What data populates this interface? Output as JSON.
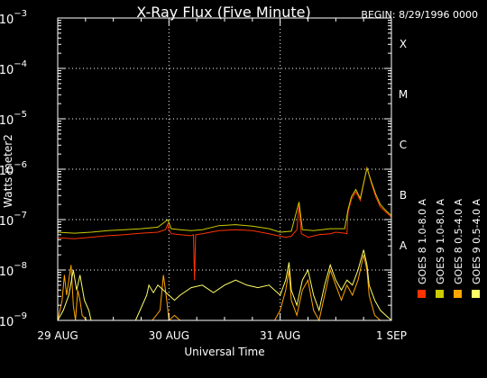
{
  "chart_data": {
    "type": "line",
    "title": "X-Ray Flux (Five Minute)",
    "begin_label": "BEGIN: 8/29/1996 0000",
    "xlabel": "Universal Time",
    "ylabel": "Watts meter2",
    "y_scale": "log",
    "ylim_exponent": [
      -9,
      -3
    ],
    "y_ticks": [
      {
        "base": "10",
        "exp": "−9",
        "value_exp": -9
      },
      {
        "base": "10",
        "exp": "−8",
        "value_exp": -8
      },
      {
        "base": "10",
        "exp": "−7",
        "value_exp": -7
      },
      {
        "base": "10",
        "exp": "−6",
        "value_exp": -6
      },
      {
        "base": "10",
        "exp": "−5",
        "value_exp": -5
      },
      {
        "base": "10",
        "exp": "−4",
        "value_exp": -4
      },
      {
        "base": "10",
        "exp": "−3",
        "value_exp": -3
      }
    ],
    "x_day_range": [
      0,
      3
    ],
    "x_ticks": [
      {
        "label": "29 AUG",
        "day": 0
      },
      {
        "label": "30 AUG",
        "day": 1
      },
      {
        "label": "31 AUG",
        "day": 2
      },
      {
        "label": "1 SEP",
        "day": 3
      }
    ],
    "flare_classes": [
      {
        "label": "A",
        "exp": -8
      },
      {
        "label": "B",
        "exp": -7
      },
      {
        "label": "C",
        "exp": -6
      },
      {
        "label": "M",
        "exp": -5
      },
      {
        "label": "X",
        "exp": -4
      }
    ],
    "grid": true,
    "legend_position": "right",
    "series": [
      {
        "name": "GOES 8 1.0-8.0 A",
        "color": "#ff3300",
        "points": [
          [
            0,
            -7.36
          ],
          [
            0.15,
            -7.38
          ],
          [
            0.3,
            -7.35
          ],
          [
            0.45,
            -7.32
          ],
          [
            0.6,
            -7.3
          ],
          [
            0.75,
            -7.27
          ],
          [
            0.9,
            -7.25
          ],
          [
            0.97,
            -7.2
          ],
          [
            0.99,
            -7.08
          ],
          [
            1.0,
            -7.2
          ],
          [
            1.02,
            -7.28
          ],
          [
            1.1,
            -7.3
          ],
          [
            1.2,
            -7.32
          ],
          [
            1.22,
            -7.3
          ],
          [
            1.23,
            -8.2
          ],
          [
            1.24,
            -7.3
          ],
          [
            1.3,
            -7.28
          ],
          [
            1.45,
            -7.22
          ],
          [
            1.6,
            -7.2
          ],
          [
            1.75,
            -7.22
          ],
          [
            1.9,
            -7.28
          ],
          [
            2.0,
            -7.33
          ],
          [
            2.05,
            -7.35
          ],
          [
            2.1,
            -7.33
          ],
          [
            2.15,
            -7.2
          ],
          [
            2.17,
            -6.72
          ],
          [
            2.19,
            -7.28
          ],
          [
            2.25,
            -7.35
          ],
          [
            2.35,
            -7.3
          ],
          [
            2.45,
            -7.28
          ],
          [
            2.5,
            -7.25
          ],
          [
            2.58,
            -7.27
          ],
          [
            2.6,
            -7.28
          ],
          [
            2.61,
            -6.85
          ],
          [
            2.64,
            -6.6
          ],
          [
            2.68,
            -6.45
          ],
          [
            2.72,
            -6.62
          ],
          [
            2.74,
            -6.4
          ],
          [
            2.78,
            -5.96
          ],
          [
            2.82,
            -6.28
          ],
          [
            2.86,
            -6.55
          ],
          [
            2.9,
            -6.75
          ],
          [
            2.95,
            -6.85
          ],
          [
            3.0,
            -6.95
          ]
        ]
      },
      {
        "name": "GOES 8 0.5-4.0 A",
        "color": "#ffa500",
        "points": [
          [
            0,
            -9
          ],
          [
            0.04,
            -8.6
          ],
          [
            0.06,
            -8.1
          ],
          [
            0.08,
            -8.5
          ],
          [
            0.1,
            -8.2
          ],
          [
            0.12,
            -7.9
          ],
          [
            0.14,
            -8.7
          ],
          [
            0.16,
            -9
          ],
          [
            0.18,
            -8.4
          ],
          [
            0.2,
            -8.6
          ],
          [
            0.22,
            -8.9
          ],
          [
            0.26,
            -9
          ],
          [
            0.5,
            -9
          ],
          [
            0.85,
            -9
          ],
          [
            0.92,
            -8.8
          ],
          [
            0.95,
            -8.1
          ],
          [
            0.98,
            -8.6
          ],
          [
            1.0,
            -9
          ],
          [
            1.05,
            -8.9
          ],
          [
            1.1,
            -9
          ],
          [
            1.3,
            -9
          ],
          [
            1.6,
            -9
          ],
          [
            1.95,
            -9
          ],
          [
            2.0,
            -8.8
          ],
          [
            2.05,
            -8.4
          ],
          [
            2.08,
            -8.0
          ],
          [
            2.1,
            -8.6
          ],
          [
            2.15,
            -8.9
          ],
          [
            2.2,
            -8.4
          ],
          [
            2.25,
            -8.2
          ],
          [
            2.3,
            -8.8
          ],
          [
            2.35,
            -9
          ],
          [
            2.4,
            -8.5
          ],
          [
            2.45,
            -8.0
          ],
          [
            2.5,
            -8.3
          ],
          [
            2.55,
            -8.6
          ],
          [
            2.6,
            -8.3
          ],
          [
            2.65,
            -8.5
          ],
          [
            2.7,
            -8.2
          ],
          [
            2.75,
            -7.7
          ],
          [
            2.78,
            -8.0
          ],
          [
            2.8,
            -8.5
          ],
          [
            2.85,
            -8.9
          ],
          [
            2.9,
            -9
          ],
          [
            3.0,
            -9
          ]
        ]
      },
      {
        "name": "GOES 9 1.0-8.0 A",
        "color": "#cccc00",
        "points": [
          [
            0,
            -7.25
          ],
          [
            0.15,
            -7.27
          ],
          [
            0.3,
            -7.25
          ],
          [
            0.45,
            -7.22
          ],
          [
            0.6,
            -7.2
          ],
          [
            0.75,
            -7.18
          ],
          [
            0.9,
            -7.15
          ],
          [
            0.99,
            -7.0
          ],
          [
            1.02,
            -7.18
          ],
          [
            1.1,
            -7.2
          ],
          [
            1.2,
            -7.22
          ],
          [
            1.3,
            -7.2
          ],
          [
            1.45,
            -7.12
          ],
          [
            1.6,
            -7.1
          ],
          [
            1.75,
            -7.13
          ],
          [
            1.9,
            -7.18
          ],
          [
            2.0,
            -7.25
          ],
          [
            2.1,
            -7.23
          ],
          [
            2.17,
            -6.65
          ],
          [
            2.2,
            -7.2
          ],
          [
            2.3,
            -7.22
          ],
          [
            2.45,
            -7.18
          ],
          [
            2.58,
            -7.18
          ],
          [
            2.61,
            -6.8
          ],
          [
            2.64,
            -6.55
          ],
          [
            2.68,
            -6.4
          ],
          [
            2.72,
            -6.58
          ],
          [
            2.74,
            -6.38
          ],
          [
            2.78,
            -5.98
          ],
          [
            2.82,
            -6.25
          ],
          [
            2.86,
            -6.5
          ],
          [
            2.9,
            -6.7
          ],
          [
            2.95,
            -6.82
          ],
          [
            3.0,
            -6.92
          ]
        ]
      },
      {
        "name": "GOES 9 0.5-4.0 A",
        "color": "#ffff66",
        "points": [
          [
            0,
            -9
          ],
          [
            0.05,
            -8.8
          ],
          [
            0.1,
            -8.5
          ],
          [
            0.14,
            -8.0
          ],
          [
            0.17,
            -8.4
          ],
          [
            0.2,
            -8.1
          ],
          [
            0.24,
            -8.6
          ],
          [
            0.28,
            -8.8
          ],
          [
            0.3,
            -9
          ],
          [
            0.5,
            -9
          ],
          [
            0.7,
            -9
          ],
          [
            0.8,
            -8.5
          ],
          [
            0.82,
            -8.3
          ],
          [
            0.86,
            -8.45
          ],
          [
            0.9,
            -8.3
          ],
          [
            0.95,
            -8.4
          ],
          [
            1.0,
            -8.5
          ],
          [
            1.05,
            -8.6
          ],
          [
            1.1,
            -8.5
          ],
          [
            1.2,
            -8.35
          ],
          [
            1.3,
            -8.3
          ],
          [
            1.4,
            -8.45
          ],
          [
            1.5,
            -8.3
          ],
          [
            1.6,
            -8.2
          ],
          [
            1.7,
            -8.3
          ],
          [
            1.8,
            -8.35
          ],
          [
            1.9,
            -8.3
          ],
          [
            2.0,
            -8.5
          ],
          [
            2.05,
            -8.2
          ],
          [
            2.08,
            -7.85
          ],
          [
            2.1,
            -8.4
          ],
          [
            2.15,
            -8.7
          ],
          [
            2.2,
            -8.2
          ],
          [
            2.25,
            -8.0
          ],
          [
            2.3,
            -8.5
          ],
          [
            2.35,
            -8.8
          ],
          [
            2.4,
            -8.3
          ],
          [
            2.45,
            -7.9
          ],
          [
            2.5,
            -8.2
          ],
          [
            2.55,
            -8.4
          ],
          [
            2.6,
            -8.2
          ],
          [
            2.65,
            -8.3
          ],
          [
            2.7,
            -8.0
          ],
          [
            2.75,
            -7.6
          ],
          [
            2.78,
            -7.9
          ],
          [
            2.8,
            -8.3
          ],
          [
            2.85,
            -8.6
          ],
          [
            2.9,
            -8.8
          ],
          [
            2.95,
            -8.9
          ],
          [
            3.0,
            -9
          ]
        ]
      }
    ]
  }
}
